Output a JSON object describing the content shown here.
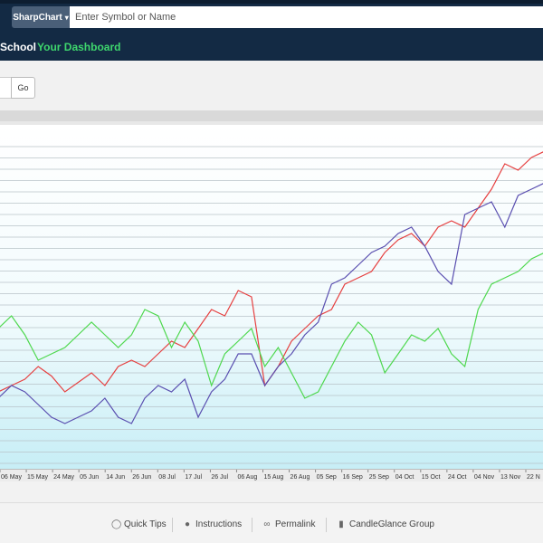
{
  "header": {
    "chart_type_button": "SharpChart",
    "search_placeholder": "Enter Symbol or Name",
    "nav_items": [
      {
        "label": "School"
      },
      {
        "label": "Your Dashboard"
      }
    ]
  },
  "toolbar": {
    "go_label": "Go"
  },
  "footer": {
    "links": [
      {
        "label": "Quick Tips",
        "icon": "lightbulb-icon"
      },
      {
        "label": "Instructions",
        "icon": "info-icon"
      },
      {
        "label": "Permalink",
        "icon": "link-icon"
      },
      {
        "label": "CandleGlance Group",
        "icon": "candle-icon"
      }
    ]
  },
  "colors": {
    "header_bg": "#132a44",
    "dashboard_green": "#3ed66d",
    "series_red": "#e64040",
    "series_purple": "#5a4fb0",
    "series_green": "#4ed84e"
  },
  "chart_data": {
    "type": "line",
    "x_ticks": [
      "06 May",
      "15 May",
      "24 May",
      "05 Jun",
      "14 Jun",
      "26 Jun",
      "08 Jul",
      "17 Jul",
      "26 Jul",
      "06 Aug",
      "15 Aug",
      "26 Aug",
      "05 Sep",
      "16 Sep",
      "25 Sep",
      "04 Oct",
      "15 Oct",
      "24 Oct",
      "04 Nov",
      "13 Nov",
      "22 N"
    ],
    "y_range": [
      0,
      100
    ],
    "grid": true,
    "series": [
      {
        "color": "#e64040",
        "values": [
          22,
          24,
          26,
          30,
          27,
          22,
          25,
          28,
          24,
          30,
          32,
          30,
          34,
          38,
          36,
          42,
          48,
          46,
          54,
          52,
          24,
          30,
          38,
          42,
          46,
          48,
          56,
          58,
          60,
          66,
          70,
          72,
          68,
          74,
          76,
          74,
          80,
          86,
          94,
          92,
          96,
          98
        ]
      },
      {
        "color": "#5a4fb0",
        "values": [
          20,
          24,
          22,
          18,
          14,
          12,
          14,
          16,
          20,
          14,
          12,
          20,
          24,
          22,
          26,
          14,
          22,
          26,
          34,
          34,
          24,
          30,
          34,
          40,
          44,
          56,
          58,
          62,
          66,
          68,
          72,
          74,
          68,
          60,
          56,
          78,
          80,
          82,
          74,
          84,
          86,
          88
        ]
      },
      {
        "color": "#4ed84e",
        "values": [
          42,
          46,
          40,
          32,
          34,
          36,
          40,
          44,
          40,
          36,
          40,
          48,
          46,
          36,
          44,
          38,
          24,
          34,
          38,
          42,
          30,
          36,
          28,
          20,
          22,
          30,
          38,
          44,
          40,
          28,
          34,
          40,
          38,
          42,
          34,
          30,
          48,
          56,
          58,
          60,
          64,
          66
        ]
      }
    ]
  }
}
